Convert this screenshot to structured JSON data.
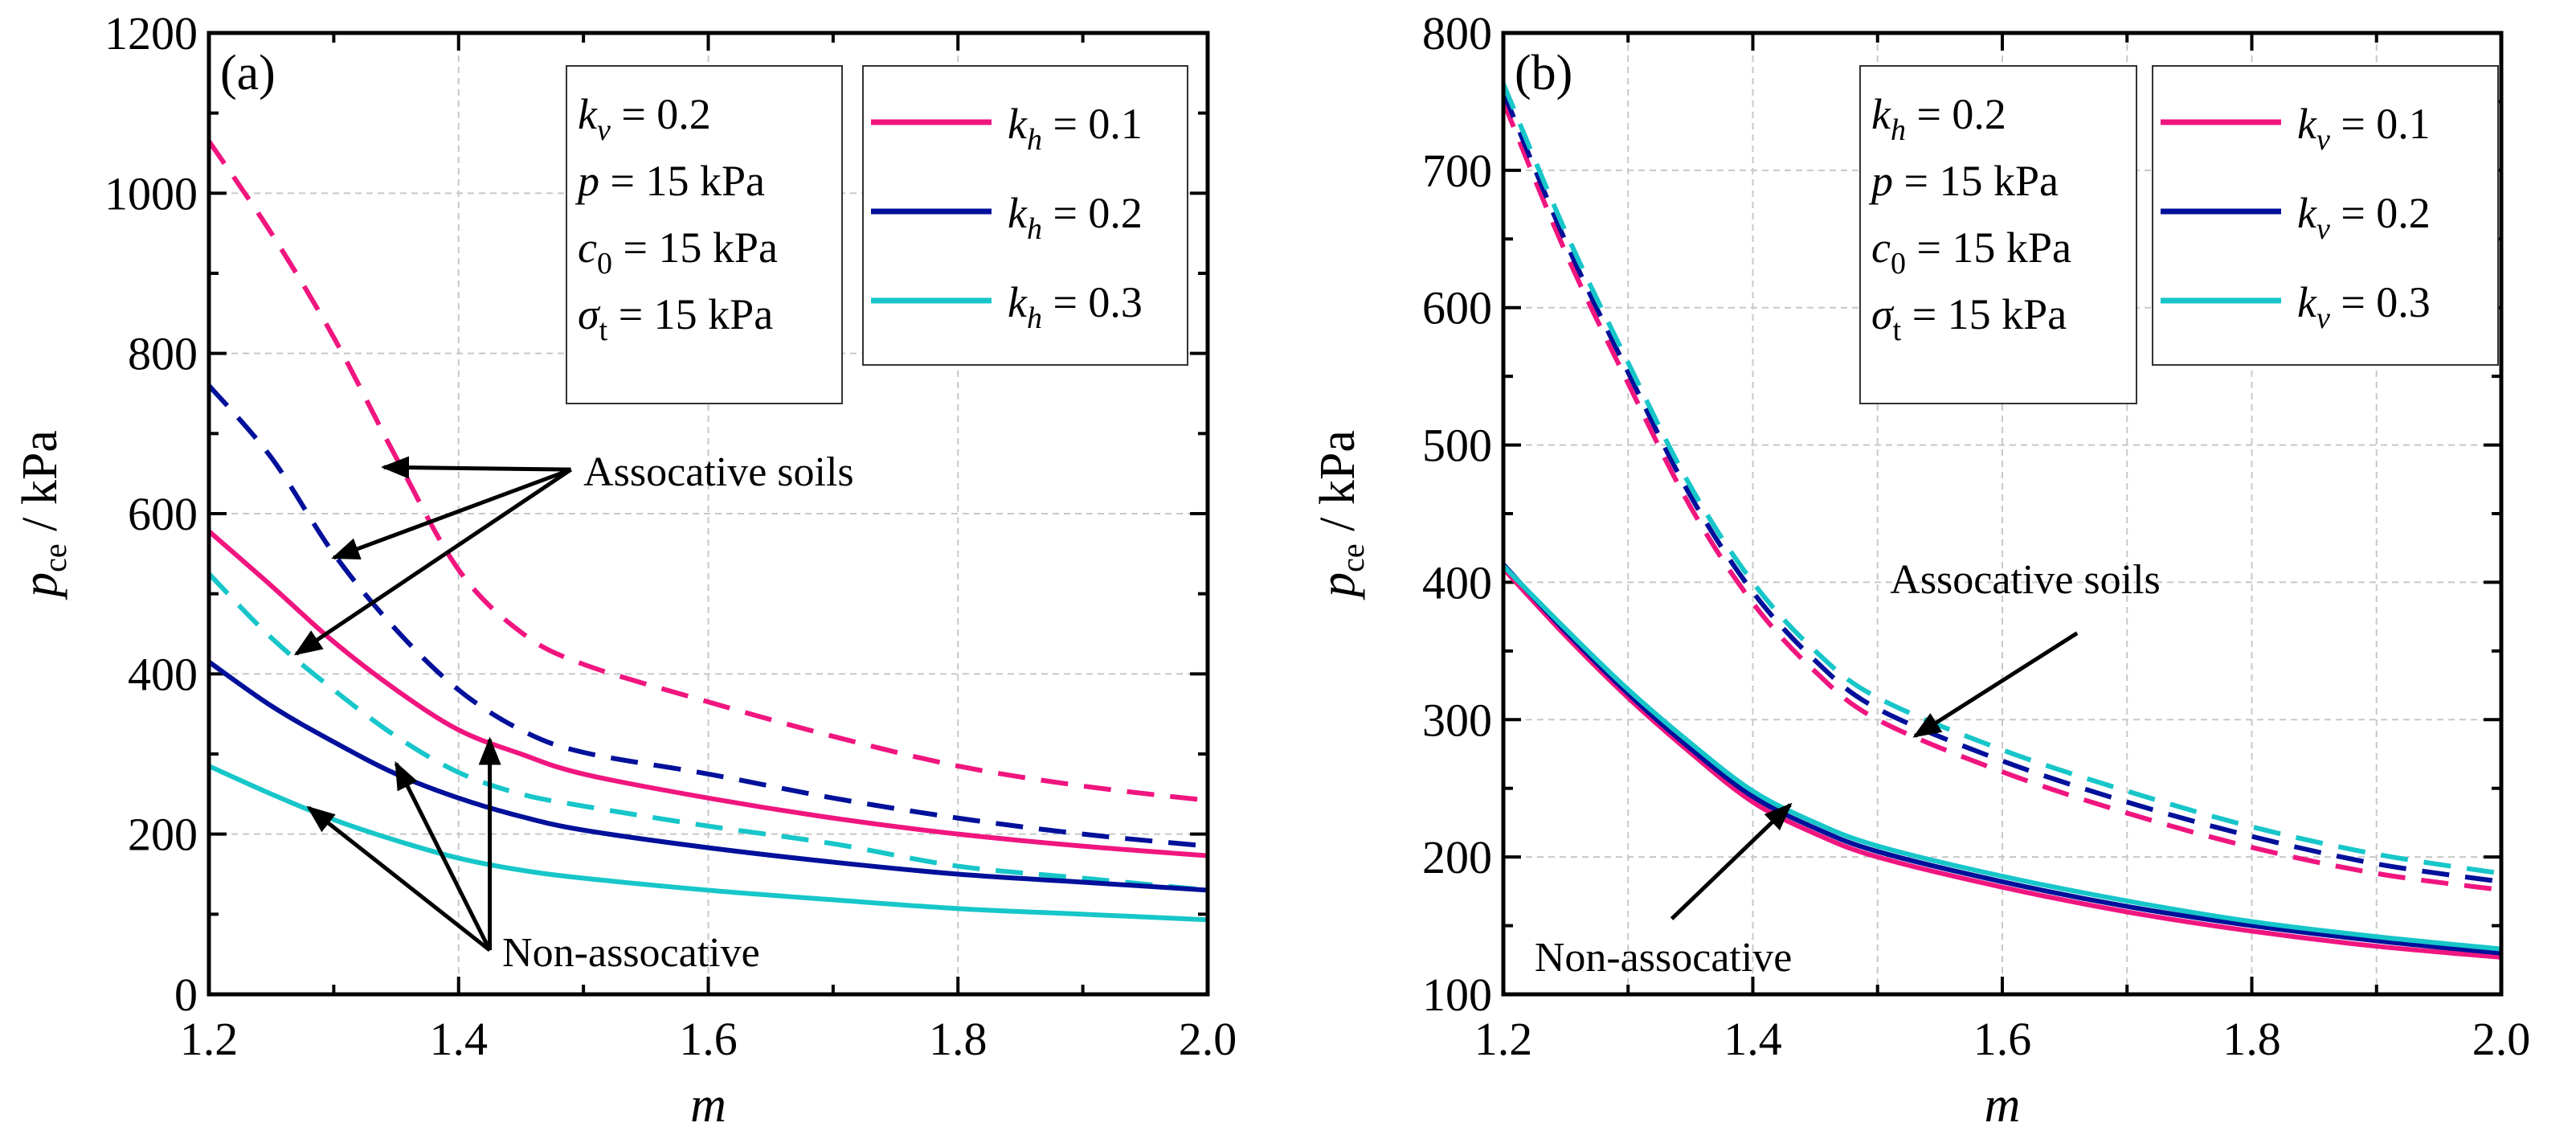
{
  "colors": {
    "s1": "#f0157f",
    "s2": "#00109a",
    "s3": "#17c6c9",
    "grid": "#c8c8c8",
    "arrow": "#000000"
  },
  "chart_data": [
    {
      "type": "line",
      "panel_label": "(a)",
      "xlabel": "m",
      "ylabel_main": "p",
      "ylabel_sub": "ce",
      "ylabel_unit": " / kPa",
      "xlim": [
        1.2,
        2.0
      ],
      "ylim": [
        0,
        1200
      ],
      "xticks": [
        "1.2",
        "1.4",
        "1.6",
        "1.8",
        "2.0"
      ],
      "yticks": [
        "0",
        "200",
        "400",
        "600",
        "800",
        "1000",
        "1200"
      ],
      "grid": "major",
      "legend_placement": "top-right",
      "params": [
        {
          "var": "k",
          "sub": "v",
          "val": " = 0.2"
        },
        {
          "var": "p",
          "sub": "",
          "val": "  = 15 kPa"
        },
        {
          "var": "c",
          "sub": "0",
          "val": " = 15 kPa"
        },
        {
          "var": "σ",
          "sub": "t",
          "val": " = 15 kPa"
        }
      ],
      "legend": [
        {
          "var": "k",
          "sub": "h",
          "val": " = 0.1"
        },
        {
          "var": "k",
          "sub": "h",
          "val": " = 0.2"
        },
        {
          "var": "k",
          "sub": "h",
          "val": " = 0.3"
        }
      ],
      "x": [
        1.2,
        1.25,
        1.3,
        1.35,
        1.4,
        1.45,
        1.5,
        1.6,
        1.7,
        1.8,
        1.9,
        2.0
      ],
      "series": [
        {
          "name": "kh = 0.1 associative",
          "color": "s1",
          "dashed": true,
          "values": [
            1065,
            950,
            820,
            670,
            530,
            452,
            412,
            365,
            322,
            285,
            260,
            242
          ]
        },
        {
          "name": "kh = 0.2 associative",
          "color": "s2",
          "dashed": true,
          "values": [
            760,
            670,
            550,
            455,
            380,
            330,
            302,
            275,
            245,
            220,
            200,
            185
          ]
        },
        {
          "name": "kh = 0.3 associative",
          "color": "s3",
          "dashed": true,
          "values": [
            525,
            445,
            380,
            322,
            277,
            250,
            235,
            210,
            188,
            160,
            145,
            130
          ]
        },
        {
          "name": "kh = 0.1 non-associative",
          "color": "s1",
          "dashed": false,
          "values": [
            578,
            510,
            440,
            380,
            330,
            300,
            275,
            245,
            220,
            200,
            185,
            173
          ]
        },
        {
          "name": "kh = 0.2 non-associative",
          "color": "s2",
          "dashed": false,
          "values": [
            415,
            360,
            315,
            275,
            245,
            222,
            205,
            183,
            165,
            150,
            140,
            130
          ]
        },
        {
          "name": "kh = 0.3 non-associative",
          "color": "s3",
          "dashed": false,
          "values": [
            285,
            250,
            218,
            192,
            170,
            155,
            145,
            130,
            118,
            107,
            100,
            93
          ]
        }
      ],
      "annotations": [
        {
          "text": "Assocative soils",
          "at": [
            1.5,
            635
          ],
          "from": [
            1.49,
            655
          ],
          "to": [
            [
              1.34,
              658
            ],
            [
              1.3,
              545
            ],
            [
              1.27,
              425
            ]
          ]
        },
        {
          "text": "Non-assocative",
          "at": [
            1.435,
            35
          ],
          "from": [
            1.425,
            55
          ],
          "to": [
            [
              1.28,
              233
            ],
            [
              1.35,
              288
            ],
            [
              1.425,
              318
            ]
          ]
        }
      ]
    },
    {
      "type": "line",
      "panel_label": "(b)",
      "xlabel": "m",
      "ylabel_main": "p",
      "ylabel_sub": "ce",
      "ylabel_unit": " / kPa",
      "xlim": [
        1.2,
        2.0
      ],
      "ylim": [
        100,
        800
      ],
      "xticks": [
        "1.2",
        "1.4",
        "1.6",
        "1.8",
        "2.0"
      ],
      "yticks": [
        "100",
        "200",
        "300",
        "400",
        "500",
        "600",
        "700",
        "800"
      ],
      "grid": "major+minor",
      "legend_placement": "top-right",
      "params": [
        {
          "var": "k",
          "sub": "h",
          "val": " = 0.2"
        },
        {
          "var": "p",
          "sub": "",
          "val": "  = 15 kPa"
        },
        {
          "var": "c",
          "sub": "0",
          "val": " = 15 kPa"
        },
        {
          "var": "σ",
          "sub": "t",
          "val": " = 15 kPa"
        }
      ],
      "legend": [
        {
          "var": "k",
          "sub": "v",
          "val": " = 0.1"
        },
        {
          "var": "k",
          "sub": "v",
          "val": " = 0.2"
        },
        {
          "var": "k",
          "sub": "v",
          "val": " = 0.3"
        }
      ],
      "x": [
        1.2,
        1.25,
        1.3,
        1.35,
        1.4,
        1.45,
        1.5,
        1.6,
        1.7,
        1.8,
        1.9,
        2.0
      ],
      "series": [
        {
          "name": "kv = 0.1 associative",
          "color": "s1",
          "dashed": true,
          "values": [
            750,
            640,
            545,
            455,
            385,
            335,
            300,
            262,
            232,
            207,
            188,
            176
          ]
        },
        {
          "name": "kv = 0.2 associative",
          "color": "s2",
          "dashed": true,
          "values": [
            757,
            648,
            553,
            463,
            393,
            343,
            308,
            270,
            240,
            215,
            195,
            182
          ]
        },
        {
          "name": "kv = 0.3 associative",
          "color": "s3",
          "dashed": true,
          "values": [
            763,
            655,
            560,
            470,
            400,
            350,
            316,
            278,
            248,
            222,
            202,
            188
          ]
        },
        {
          "name": "kv = 0.1 non-associative",
          "color": "s1",
          "dashed": false,
          "values": [
            410,
            361,
            316,
            276,
            240,
            217,
            200,
            178,
            160,
            146,
            135,
            127
          ]
        },
        {
          "name": "kv = 0.2 non-associative",
          "color": "s2",
          "dashed": false,
          "values": [
            413,
            364,
            319,
            279,
            244,
            221,
            204,
            182,
            164,
            150,
            139,
            130
          ]
        },
        {
          "name": "kv = 0.3 non-associative",
          "color": "s3",
          "dashed": false,
          "values": [
            412,
            366,
            322,
            283,
            248,
            225,
            208,
            186,
            168,
            153,
            142,
            133
          ]
        }
      ],
      "annotations": [
        {
          "text": "Assocative soils",
          "at": [
            1.51,
            392
          ],
          "from": [
            1.66,
            363
          ],
          "to": [
            [
              1.53,
              288
            ]
          ]
        },
        {
          "text": "Non-assocative",
          "at": [
            1.225,
            117
          ],
          "from": [
            1.335,
            155
          ],
          "to": [
            [
              1.43,
              238
            ]
          ]
        }
      ]
    }
  ]
}
